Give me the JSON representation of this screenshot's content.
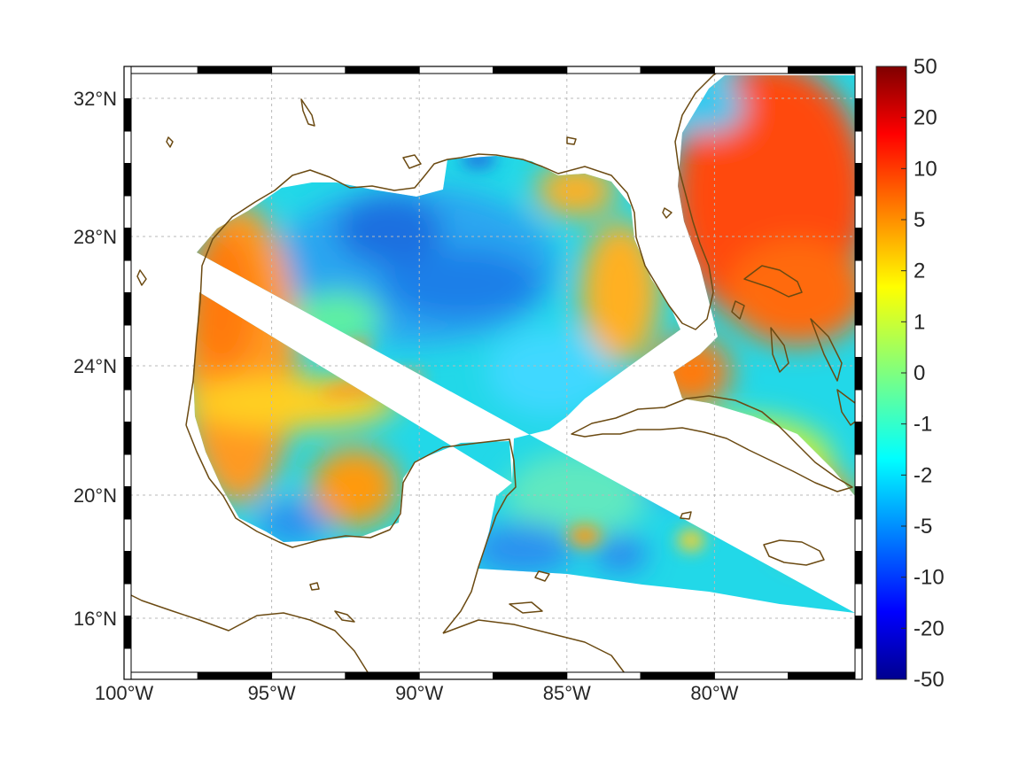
{
  "map": {
    "lon_range": [
      -100,
      -75
    ],
    "lat_range": [
      14.2,
      32.9
    ],
    "lon_ticks": [
      {
        "value": -100,
        "label": "100°W"
      },
      {
        "value": -95,
        "label": "95°W"
      },
      {
        "value": -90,
        "label": "90°W"
      },
      {
        "value": -85,
        "label": "85°W"
      },
      {
        "value": -80,
        "label": "80°W"
      }
    ],
    "lat_ticks": [
      {
        "value": 16,
        "label": "16°N"
      },
      {
        "value": 20,
        "label": "20°N"
      },
      {
        "value": 24,
        "label": "24°N"
      },
      {
        "value": 28,
        "label": "28°N"
      },
      {
        "value": 32,
        "label": "32°N"
      }
    ],
    "grid": true,
    "coastline_color": "#6b4a12",
    "colormap": "jet"
  },
  "colorbar": {
    "placement": "right",
    "labels": [
      "50",
      "20",
      "10",
      "5",
      "2",
      "1",
      "0",
      "-1",
      "-2",
      "-5",
      "-10",
      "-20",
      "-50"
    ]
  }
}
